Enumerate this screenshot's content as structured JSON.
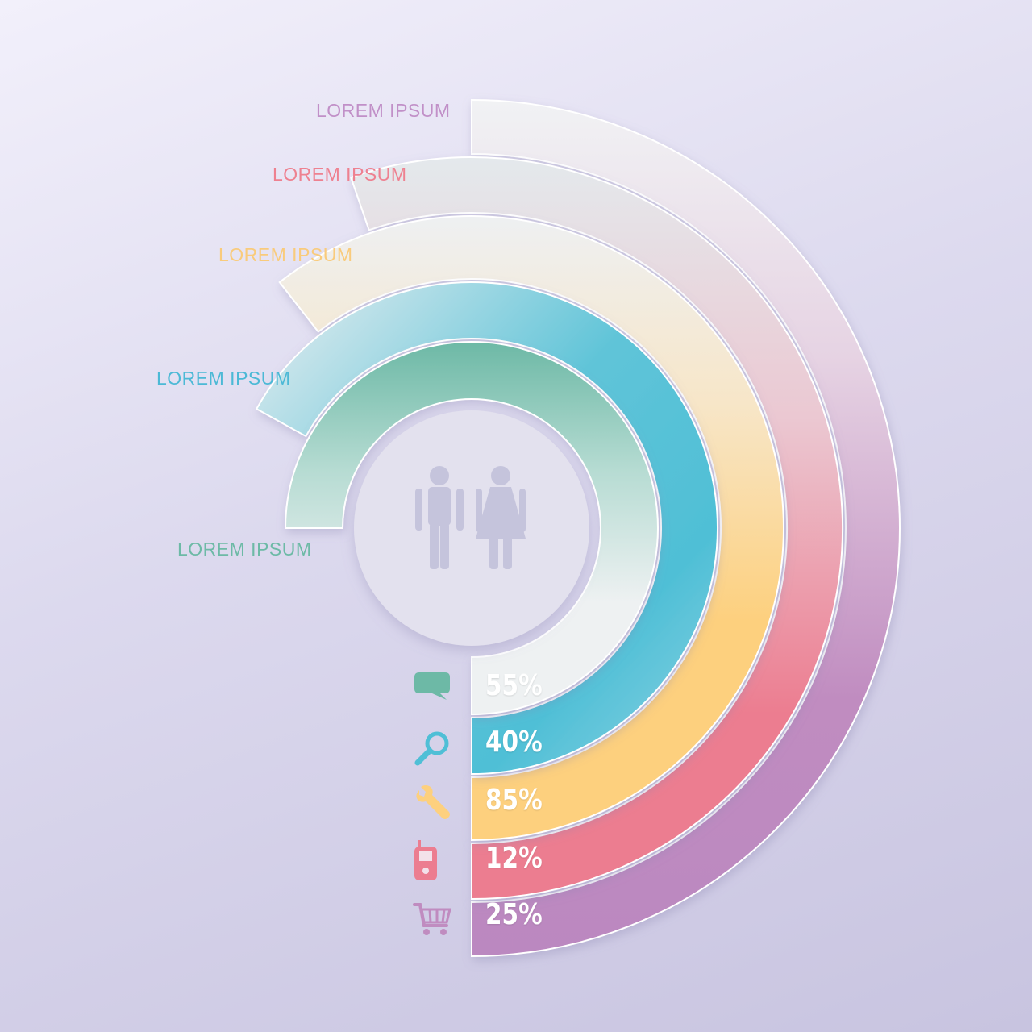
{
  "rings": [
    {
      "label": "LOREM IPSUM",
      "value": "55%",
      "percent": 55,
      "color": "#6db9a6",
      "label_color": "#6dbaa6",
      "icon": "speech-bubble-icon"
    },
    {
      "label": "LOREM IPSUM",
      "value": "40%",
      "percent": 40,
      "color": "#4fbfd6",
      "label_color": "#4cb9d6",
      "icon": "magnifier-icon"
    },
    {
      "label": "LOREM IPSUM",
      "value": "85%",
      "percent": 85,
      "color": "#fdd07e",
      "label_color": "#f9cb7c",
      "icon": "wrench-icon"
    },
    {
      "label": "LOREM IPSUM",
      "value": "12%",
      "percent": 12,
      "color": "#ec7d90",
      "label_color": "#ee8190",
      "icon": "mobile-phone-icon"
    },
    {
      "label": "LOREM IPSUM",
      "value": "25%",
      "percent": 25,
      "color": "#c08cc0",
      "label_color": "#c190c8",
      "icon": "shopping-cart-icon"
    }
  ],
  "center_icon": "people-icon"
}
